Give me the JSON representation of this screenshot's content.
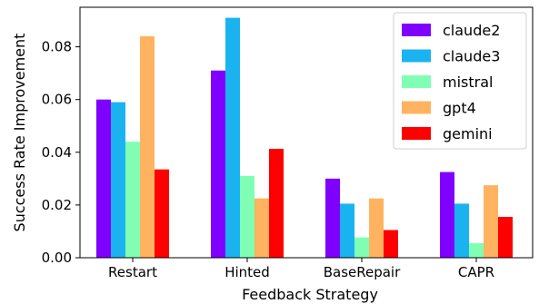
{
  "chart_data": {
    "type": "bar",
    "xlabel": "Feedback Strategy",
    "ylabel": "Success Rate Improvement",
    "categories": [
      "Restart",
      "Hinted",
      "BaseRepair",
      "CAPR"
    ],
    "ylim": [
      0,
      0.095
    ],
    "yticks": [
      "0.00",
      "0.02",
      "0.04",
      "0.06",
      "0.08"
    ],
    "grid": false,
    "legend_position": "top-right",
    "series": [
      {
        "name": "claude2",
        "color": "#8000ff",
        "values": [
          0.06,
          0.071,
          0.03,
          0.0325
        ]
      },
      {
        "name": "claude3",
        "color": "#1ab3f0",
        "values": [
          0.059,
          0.091,
          0.0205,
          0.0205
        ]
      },
      {
        "name": "mistral",
        "color": "#80ffb4",
        "values": [
          0.044,
          0.031,
          0.0077,
          0.0055
        ]
      },
      {
        "name": "gpt4",
        "color": "#ffb360",
        "values": [
          0.084,
          0.0225,
          0.0225,
          0.0275
        ]
      },
      {
        "name": "gemini",
        "color": "#ff0000",
        "values": [
          0.0335,
          0.0413,
          0.0105,
          0.0155
        ]
      }
    ]
  }
}
